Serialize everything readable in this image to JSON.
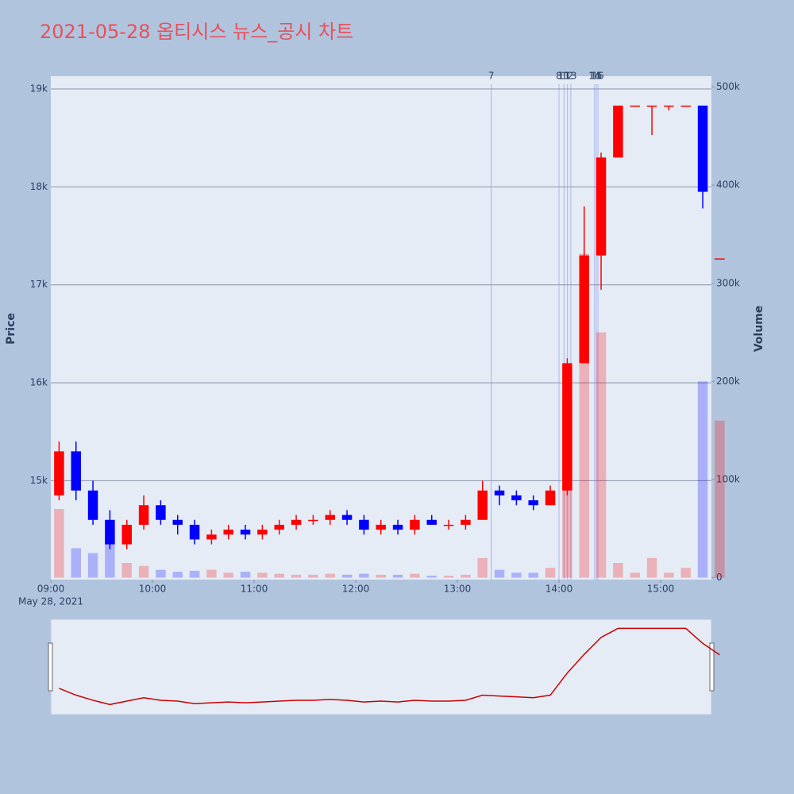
{
  "chart_data": {
    "type": "candlestick",
    "title": "2021-05-28 옵티시스 뉴스_공시 차트",
    "x_axis_sublabel": "May 28, 2021",
    "y_label": "Price",
    "y2_label": "Volume",
    "x": [
      "09:00",
      "09:10",
      "09:20",
      "09:30",
      "09:40",
      "09:50",
      "10:00",
      "10:10",
      "10:20",
      "10:30",
      "10:40",
      "10:50",
      "11:00",
      "11:10",
      "11:20",
      "11:30",
      "11:40",
      "11:50",
      "12:00",
      "12:10",
      "12:20",
      "12:30",
      "12:40",
      "12:50",
      "13:00",
      "13:10",
      "13:20",
      "13:30",
      "13:40",
      "13:50",
      "14:00",
      "14:10",
      "14:20",
      "14:30",
      "14:40",
      "14:50",
      "15:00",
      "15:10",
      "15:20",
      "15:30"
    ],
    "open": [
      14850,
      15300,
      14900,
      14600,
      14350,
      14550,
      14750,
      14600,
      14550,
      14400,
      14450,
      14500,
      14450,
      14500,
      14550,
      14600,
      14600,
      14650,
      14600,
      14500,
      14550,
      14500,
      14600,
      14550,
      14550,
      14600,
      14900,
      14850,
      14800,
      14750,
      14900,
      16200,
      17300,
      18300,
      18830,
      18830,
      18830,
      18830,
      18830,
      17270
    ],
    "high": [
      15400,
      15400,
      15000,
      14700,
      14600,
      14850,
      14800,
      14650,
      14600,
      14500,
      14550,
      14550,
      14550,
      14600,
      14650,
      14650,
      14700,
      14700,
      14650,
      14600,
      14600,
      14650,
      14650,
      14600,
      14650,
      15000,
      14950,
      14900,
      14850,
      14950,
      16250,
      17800,
      18350,
      18830,
      18830,
      18830,
      18830,
      18830,
      18830,
      17270
    ],
    "low": [
      14800,
      14800,
      14550,
      14300,
      14300,
      14500,
      14550,
      14450,
      14350,
      14350,
      14400,
      14400,
      14400,
      14450,
      14500,
      14550,
      14550,
      14550,
      14450,
      14450,
      14450,
      14450,
      14550,
      14500,
      14500,
      14600,
      14750,
      14750,
      14700,
      14750,
      14850,
      16200,
      16950,
      18300,
      18830,
      18530,
      18780,
      18830,
      17780,
      17270
    ],
    "close": [
      15300,
      14900,
      14600,
      14350,
      14550,
      14750,
      14600,
      14550,
      14400,
      14450,
      14500,
      14450,
      14500,
      14550,
      14600,
      14600,
      14650,
      14600,
      14500,
      14550,
      14500,
      14600,
      14550,
      14550,
      14600,
      14900,
      14850,
      14800,
      14750,
      14900,
      16200,
      17300,
      18300,
      18830,
      18830,
      18830,
      18830,
      18830,
      17950,
      17270
    ],
    "volume": [
      70000,
      30000,
      25000,
      40000,
      15000,
      12000,
      8000,
      6000,
      7000,
      8000,
      5000,
      6000,
      5000,
      4000,
      3000,
      3000,
      4000,
      3000,
      4000,
      3000,
      3000,
      4000,
      2000,
      2000,
      3000,
      20000,
      8000,
      5000,
      5000,
      10000,
      180000,
      330000,
      250000,
      15000,
      5000,
      20000,
      5000,
      10000,
      200000,
      160000
    ],
    "up_color": "#ff0000",
    "down_color": "#0000ff",
    "xlim": [
      "09:00",
      "15:30"
    ],
    "xticks": [
      "09:00",
      "10:00",
      "11:00",
      "12:00",
      "13:00",
      "14:00",
      "15:00"
    ],
    "ylim": [
      13990,
      19130
    ],
    "yticks": [
      {
        "value": 15000,
        "label": "15k"
      },
      {
        "value": 16000,
        "label": "16k"
      },
      {
        "value": 17000,
        "label": "17k"
      },
      {
        "value": 18000,
        "label": "18k"
      },
      {
        "value": 19000,
        "label": "19k"
      }
    ],
    "y2lim": [
      -2000,
      511000
    ],
    "y2ticks": [
      0,
      {
        "value": 100000,
        "label": "100k"
      },
      {
        "value": 200000,
        "label": "200k"
      },
      {
        "value": 300000,
        "label": "300k"
      },
      {
        "value": 400000,
        "label": "400k"
      },
      {
        "value": 500000,
        "label": "500k"
      }
    ],
    "grid": true,
    "news": [
      {
        "x": "13:20",
        "label": "7"
      },
      {
        "x": "14:00",
        "label": "8"
      },
      {
        "x": "14:03",
        "label": "11"
      },
      {
        "x": "14:05",
        "label": "12"
      },
      {
        "x": "14:07",
        "label": "13"
      },
      {
        "x": "14:21",
        "label": "14"
      },
      {
        "x": "14:22",
        "label": "15"
      },
      {
        "x": "14:23",
        "label": "16"
      }
    ]
  }
}
